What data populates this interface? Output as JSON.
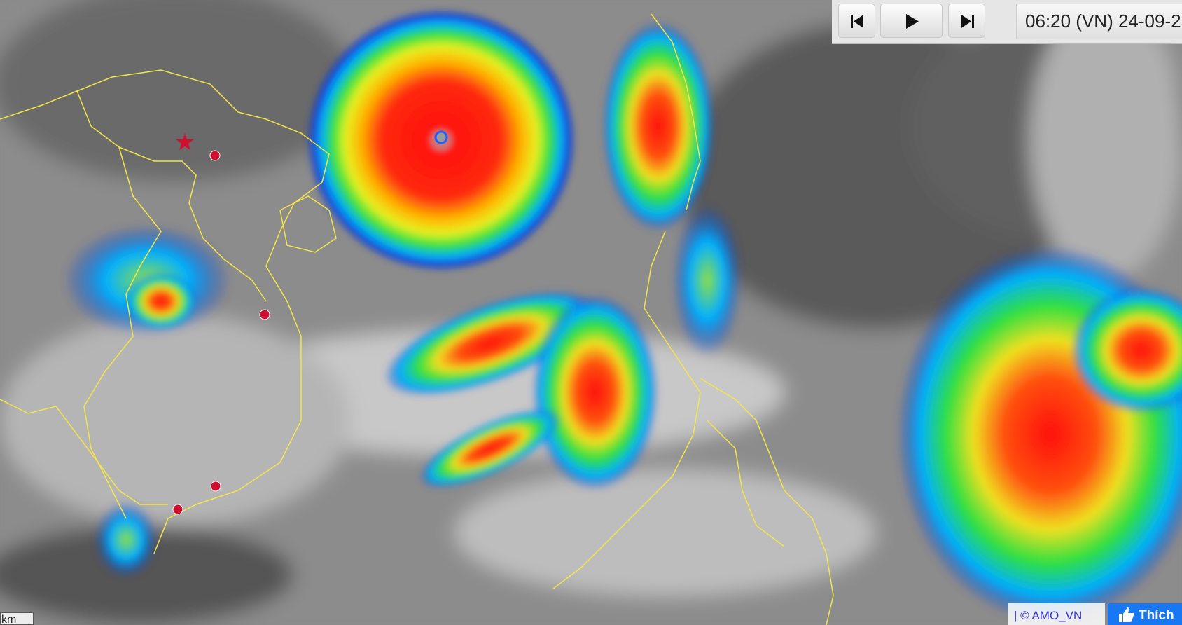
{
  "toolbar": {
    "timestamp": "06:20 (VN) 24-09-2"
  },
  "scale": {
    "label": "km"
  },
  "footer": {
    "credit": "| © AMO_VN",
    "like": "Thích"
  }
}
